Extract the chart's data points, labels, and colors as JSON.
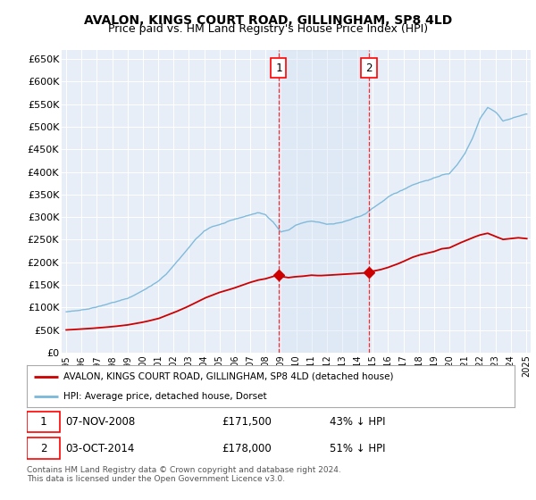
{
  "title": "AVALON, KINGS COURT ROAD, GILLINGHAM, SP8 4LD",
  "subtitle": "Price paid vs. HM Land Registry's House Price Index (HPI)",
  "title_fontsize": 10,
  "subtitle_fontsize": 9,
  "ylabel_ticks": [
    "£0",
    "£50K",
    "£100K",
    "£150K",
    "£200K",
    "£250K",
    "£300K",
    "£350K",
    "£400K",
    "£450K",
    "£500K",
    "£550K",
    "£600K",
    "£650K"
  ],
  "ytick_values": [
    0,
    50000,
    100000,
    150000,
    200000,
    250000,
    300000,
    350000,
    400000,
    450000,
    500000,
    550000,
    600000,
    650000
  ],
  "hpi_color": "#7ab8d9",
  "price_color": "#cc0000",
  "sale1_x": 2008.85,
  "sale2_x": 2014.75,
  "sale1_price": 171500,
  "sale2_price": 178000,
  "background_color": "#e8eef8",
  "span_color": "#d0dff0",
  "legend_line1": "AVALON, KINGS COURT ROAD, GILLINGHAM, SP8 4LD (detached house)",
  "legend_line2": "HPI: Average price, detached house, Dorset",
  "annotation1": "07-NOV-2008",
  "annotation1_price": "£171,500",
  "annotation1_pct": "43% ↓ HPI",
  "annotation2": "03-OCT-2014",
  "annotation2_price": "£178,000",
  "annotation2_pct": "51% ↓ HPI",
  "footnote": "Contains HM Land Registry data © Crown copyright and database right 2024.\nThis data is licensed under the Open Government Licence v3.0."
}
